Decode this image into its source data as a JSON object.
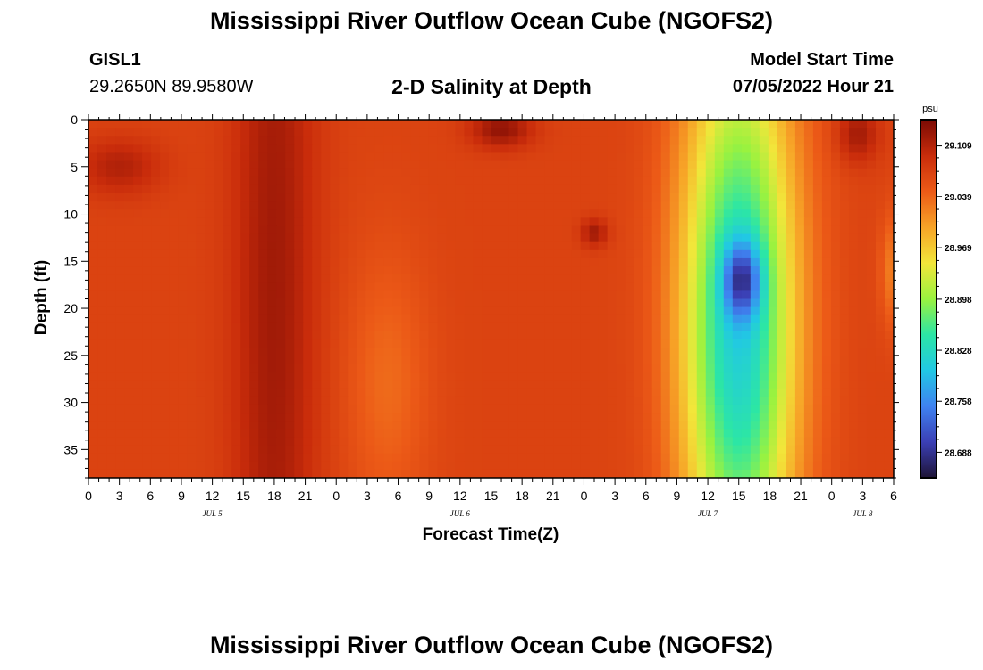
{
  "header": {
    "title": "Mississippi River Outflow Ocean Cube (NGOFS2)",
    "station_name": "GISL1",
    "station_coords": "29.2650N  89.9580W",
    "subtitle": "2-D Salinity at Depth",
    "model_start_label": "Model Start Time",
    "model_start_value": "07/05/2022 Hour 21"
  },
  "footer": {
    "title": "Mississippi River Outflow Ocean Cube (NGOFS2)"
  },
  "chart_data": {
    "type": "heatmap",
    "title": "2-D Salinity at Depth",
    "xlabel": "Forecast Time(Z)",
    "ylabel": "Depth (ft)",
    "x_units": "hours since 00Z Jul 5",
    "x_range": [
      0,
      78
    ],
    "x_tick_step_hours": 3,
    "x_tick_labels": [
      "0",
      "3",
      "6",
      "9",
      "12",
      "15",
      "18",
      "21",
      "0",
      "3",
      "6",
      "9",
      "12",
      "15",
      "18",
      "21",
      "0",
      "3",
      "6",
      "9",
      "12",
      "15",
      "18",
      "21",
      "0",
      "3",
      "6"
    ],
    "day_labels": [
      {
        "label": "JUL 5",
        "hour": 12
      },
      {
        "label": "JUL 6",
        "hour": 36
      },
      {
        "label": "JUL 7",
        "hour": 60
      },
      {
        "label": "JUL 8",
        "hour": 75
      }
    ],
    "y_range": [
      0,
      38
    ],
    "y_inverted": true,
    "y_ticks": [
      0,
      5,
      10,
      15,
      20,
      25,
      30,
      35
    ],
    "colorbar": {
      "unit": "psu",
      "min": 28.653,
      "max": 29.144,
      "tick_values": [
        29.109,
        29.039,
        28.969,
        28.898,
        28.828,
        28.758,
        28.688
      ],
      "tick_labels": [
        "29.109",
        "29.039",
        "28.969",
        "28.898",
        "28.828",
        "28.758",
        "28.688"
      ],
      "colors": [
        "#1e1436",
        "#3b3fb5",
        "#3f82f0",
        "#21c8e4",
        "#2ce6a5",
        "#9af23f",
        "#f2e63a",
        "#f7a327",
        "#ec5a17",
        "#c92c0b",
        "#7a0a04"
      ]
    },
    "features": [
      {
        "name": "base-field",
        "value": 29.07
      },
      {
        "name": "early-high-band",
        "x": 18,
        "y": 18,
        "sx": 4,
        "sy": 60,
        "dv": 0.05
      },
      {
        "name": "surface-high-left",
        "x": 3,
        "y": 5,
        "sx": 4,
        "sy": 3,
        "dv": 0.04
      },
      {
        "name": "surface-high-mid",
        "x": 40,
        "y": 1,
        "sx": 3,
        "sy": 2,
        "dv": 0.06
      },
      {
        "name": "subsurface-high",
        "x": 49,
        "y": 12,
        "sx": 1.3,
        "sy": 1.5,
        "dv": 0.05
      },
      {
        "name": "surface-high-right",
        "x": 74.5,
        "y": 1.5,
        "sx": 2,
        "sy": 3,
        "dv": 0.05
      },
      {
        "name": "mid-low-band",
        "x": 29,
        "y": 28,
        "sx": 4,
        "sy": 14,
        "dv": -0.035
      },
      {
        "name": "fresh-plume",
        "x": 63,
        "y": 22,
        "sx": 5.5,
        "sy": 30,
        "dv": -0.26
      },
      {
        "name": "fresh-plume-core",
        "x": 63.3,
        "y": 17,
        "sx": 1.8,
        "sy": 4,
        "dv": -0.14
      },
      {
        "name": "right-edge-mix",
        "x": 78,
        "y": 16,
        "sx": 1.3,
        "sy": 6,
        "dv": -0.05
      }
    ]
  }
}
